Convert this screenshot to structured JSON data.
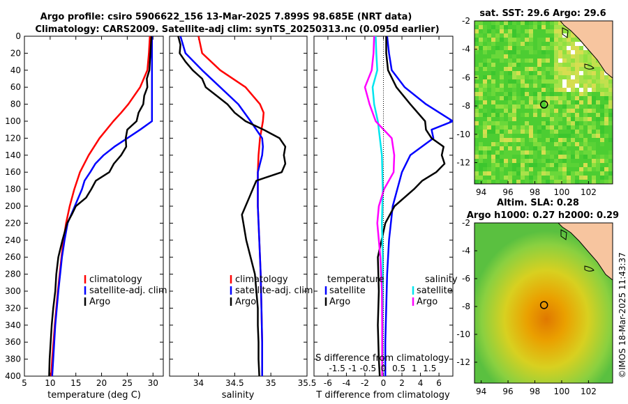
{
  "colors": {
    "climatology": "#ff0000",
    "satellite": "#0000ff",
    "argo": "#000000",
    "sal_satellite": "#00e5ee",
    "sal_argo": "#ff00ff",
    "land": "#f7c59f"
  },
  "header": {
    "line1": "Argo profile: csiro 5906622_156 13-Mar-2025 7.899S 98.685E (NRT data)",
    "line2": "Climatology: CARS2009. Satellite-adj clim: synTS_20250313.nc (0.095d earlier)"
  },
  "credit": "©IMOS 18-Mar-2025 11:43:37",
  "chart_data": [
    {
      "type": "line",
      "name": "temperature-profile",
      "xlabel": "temperature (deg C)",
      "ylabel": "",
      "xlim": [
        5,
        32
      ],
      "ylim": [
        400,
        0
      ],
      "xticks": [
        "5",
        "10",
        "15",
        "20",
        "25",
        "30"
      ],
      "yticks": [
        "0",
        "20",
        "40",
        "60",
        "80",
        "100",
        "120",
        "140",
        "160",
        "180",
        "200",
        "220",
        "240",
        "260",
        "280",
        "300",
        "320",
        "340",
        "360",
        "380",
        "400"
      ],
      "legend": [
        "climatology",
        "satellite-adj. clim",
        "Argo"
      ],
      "series": [
        {
          "name": "climatology",
          "depth": [
            0,
            20,
            40,
            60,
            80,
            90,
            100,
            120,
            140,
            160,
            180,
            200,
            220,
            240,
            260,
            300,
            340,
            380,
            400
          ],
          "values": [
            29.4,
            29.2,
            28.9,
            27.5,
            25.2,
            23.8,
            22.3,
            19.6,
            17.5,
            15.8,
            14.7,
            13.8,
            13.1,
            12.6,
            12.2,
            11.5,
            10.9,
            10.4,
            10.2
          ]
        },
        {
          "name": "satellite-adj. clim",
          "depth": [
            0,
            20,
            40,
            60,
            80,
            100,
            110,
            120,
            130,
            140,
            150,
            160,
            170,
            180,
            200,
            220,
            240,
            260,
            300,
            340,
            380,
            400
          ],
          "values": [
            29.8,
            29.8,
            29.8,
            29.8,
            29.8,
            29.8,
            27.5,
            25.0,
            22.5,
            20.4,
            18.8,
            17.8,
            16.7,
            16.2,
            14.8,
            13.4,
            12.8,
            12.3,
            11.6,
            11.0,
            10.6,
            10.4
          ]
        },
        {
          "name": "Argo",
          "depth": [
            0,
            10,
            20,
            30,
            40,
            50,
            60,
            70,
            80,
            90,
            100,
            110,
            120,
            130,
            140,
            150,
            160,
            170,
            180,
            190,
            200,
            210,
            220,
            240,
            260,
            280,
            300,
            320,
            340,
            360,
            380,
            400
          ],
          "values": [
            29.7,
            29.6,
            29.5,
            29.4,
            29.3,
            28.8,
            28.9,
            28.3,
            28.1,
            27.2,
            26.8,
            25.0,
            24.7,
            24.8,
            23.8,
            22.4,
            21.5,
            18.9,
            18.0,
            17.0,
            15.0,
            14.2,
            13.3,
            12.4,
            11.6,
            11.2,
            11.0,
            10.6,
            10.3,
            10.1,
            9.9,
            9.8
          ]
        }
      ]
    },
    {
      "type": "line",
      "name": "salinity-profile",
      "xlabel": "salinity",
      "ylabel": "",
      "xlim": [
        33.6,
        35.5
      ],
      "ylim": [
        400,
        0
      ],
      "xticks": [
        "34",
        "34.5",
        "35",
        "35.5"
      ],
      "legend": [
        "climatology",
        "satellite-adj. clim",
        "Argo"
      ],
      "series": [
        {
          "name": "climatology",
          "depth": [
            0,
            20,
            40,
            60,
            80,
            90,
            100,
            120,
            140,
            160,
            200,
            240,
            280,
            320,
            360,
            400
          ],
          "values": [
            34.0,
            34.05,
            34.3,
            34.65,
            34.85,
            34.9,
            34.89,
            34.85,
            34.83,
            34.82,
            34.82,
            34.84,
            34.86,
            34.87,
            34.88,
            34.88
          ]
        },
        {
          "name": "satellite-adj. clim",
          "depth": [
            0,
            20,
            40,
            60,
            80,
            100,
            120,
            130,
            140,
            150,
            160,
            180,
            200,
            240,
            280,
            320,
            360,
            400
          ],
          "values": [
            33.75,
            33.82,
            34.05,
            34.3,
            34.55,
            34.72,
            34.88,
            34.89,
            34.88,
            34.85,
            34.82,
            34.82,
            34.82,
            34.84,
            34.86,
            34.87,
            34.88,
            34.88
          ]
        },
        {
          "name": "Argo",
          "depth": [
            0,
            10,
            20,
            30,
            40,
            50,
            60,
            70,
            80,
            90,
            100,
            110,
            120,
            130,
            140,
            150,
            160,
            170,
            180,
            190,
            200,
            210,
            220,
            240,
            260,
            280,
            300,
            320,
            340,
            360,
            380,
            400
          ],
          "values": [
            33.72,
            33.75,
            33.74,
            33.82,
            33.92,
            34.05,
            34.1,
            34.25,
            34.4,
            34.5,
            34.65,
            34.9,
            35.12,
            35.2,
            35.18,
            35.2,
            35.15,
            34.8,
            34.75,
            34.7,
            34.65,
            34.6,
            34.62,
            34.66,
            34.72,
            34.78,
            34.8,
            34.82,
            34.82,
            34.83,
            34.83,
            34.84
          ]
        }
      ]
    },
    {
      "type": "line",
      "name": "difference-profile",
      "xlabel": "T difference from climatology",
      "x2label": "S difference from climatology",
      "xlim": [
        -7.5,
        7.5
      ],
      "x2lim": [
        -2.25,
        2.25
      ],
      "ylim": [
        400,
        0
      ],
      "xticks": [
        "-6",
        "-4",
        "-2",
        "0",
        "2",
        "4",
        "6"
      ],
      "x2ticks": [
        "-1.5",
        "-1",
        "-0.5",
        "0",
        "0.5",
        "1",
        "1.5"
      ],
      "legend_groups": {
        "temperature": [
          "satellite",
          "Argo"
        ],
        "salinity": [
          "satellite",
          "Argo"
        ]
      },
      "series": [
        {
          "name": "T satellite",
          "axis": "T",
          "depth": [
            0,
            20,
            40,
            60,
            80,
            100,
            110,
            120,
            140,
            160,
            180,
            200,
            240,
            280,
            320,
            360,
            400
          ],
          "values": [
            0.4,
            0.6,
            0.9,
            2.3,
            4.6,
            7.5,
            5.2,
            5.4,
            2.9,
            2.0,
            1.5,
            1.0,
            0.6,
            0.4,
            0.3,
            0.2,
            0.2
          ]
        },
        {
          "name": "T Argo",
          "axis": "T",
          "depth": [
            0,
            20,
            40,
            60,
            80,
            100,
            110,
            120,
            130,
            140,
            150,
            160,
            170,
            180,
            200,
            220,
            260,
            300,
            340,
            380,
            400
          ],
          "values": [
            0.3,
            0.3,
            0.5,
            1.4,
            2.9,
            4.5,
            4.6,
            5.2,
            6.5,
            6.3,
            6.6,
            5.7,
            4.2,
            3.3,
            1.2,
            0.2,
            -0.6,
            -0.5,
            -0.6,
            -0.5,
            -0.4
          ]
        },
        {
          "name": "S satellite",
          "axis": "S",
          "depth": [
            0,
            20,
            40,
            60,
            80,
            100,
            140,
            180,
            220,
            260,
            300,
            340,
            400
          ],
          "values": [
            -0.25,
            -0.23,
            -0.2,
            -0.35,
            -0.3,
            -0.18,
            -0.05,
            -0.02,
            -0.05,
            -0.02,
            -0.02,
            -0.03,
            -0.03
          ]
        },
        {
          "name": "S Argo",
          "axis": "S",
          "depth": [
            0,
            20,
            40,
            60,
            80,
            100,
            120,
            140,
            160,
            180,
            200,
            220,
            240,
            260,
            300,
            340,
            380,
            400
          ],
          "values": [
            -0.3,
            -0.32,
            -0.38,
            -0.6,
            -0.45,
            -0.25,
            0.27,
            0.35,
            0.33,
            0.02,
            -0.15,
            -0.2,
            -0.15,
            -0.1,
            -0.05,
            -0.04,
            -0.04,
            -0.04
          ]
        }
      ]
    },
    {
      "type": "heatmap",
      "name": "sst-map",
      "title": "sat. SST: 29.6 Argo: 29.6",
      "xlim": [
        93.5,
        103.8
      ],
      "ylim": [
        -13.5,
        -2
      ],
      "xticks": [
        "94",
        "96",
        "98",
        "100",
        "102"
      ],
      "yticks": [
        "-2",
        "-4",
        "-6",
        "-8",
        "-10",
        "-12"
      ],
      "argo_position": {
        "lon": 98.685,
        "lat": -7.899
      }
    },
    {
      "type": "heatmap",
      "name": "sla-map",
      "title_line1": "Altim. SLA: 0.28",
      "title_line2": "Argo h1000: 0.27 h2000: 0.29",
      "xlim": [
        93.5,
        103.8
      ],
      "ylim": [
        -13.5,
        -2
      ],
      "xticks": [
        "94",
        "96",
        "98",
        "100",
        "102"
      ],
      "yticks": [
        "-2",
        "-4",
        "-6",
        "-8",
        "-10",
        "-12"
      ],
      "argo_position": {
        "lon": 98.685,
        "lat": -7.899
      }
    }
  ]
}
